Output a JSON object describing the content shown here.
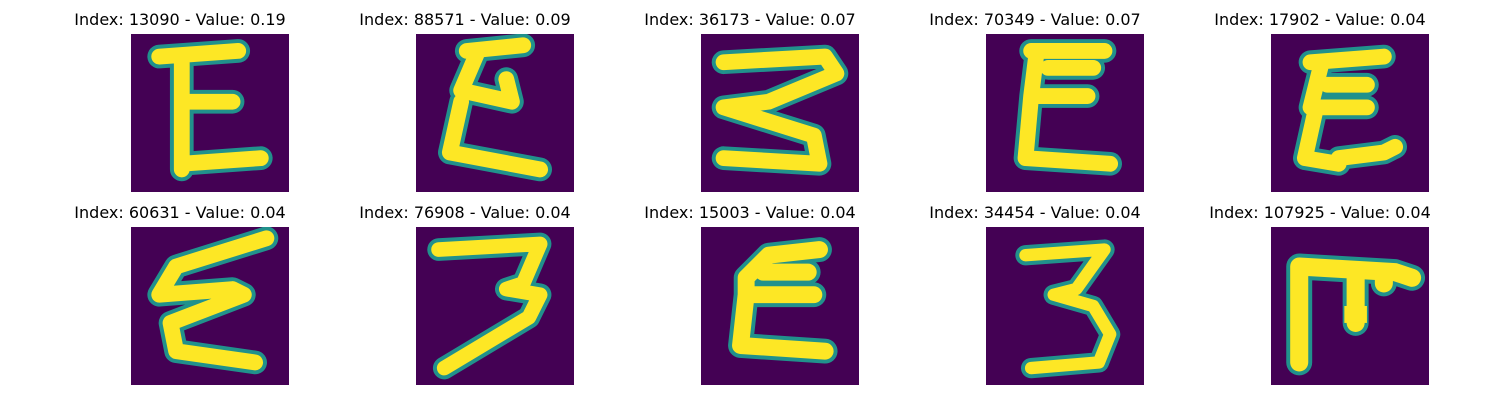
{
  "colors": {
    "background": "#440154",
    "foreground": "#fde725",
    "mid": "#21918c"
  },
  "panels": [
    {
      "title": "Index: 13090 - Value: 0.19",
      "index": 13090,
      "value": 0.19,
      "glyph": "E-shaped handwritten digit"
    },
    {
      "title": "Index: 88571 - Value: 0.09",
      "index": 88571,
      "value": 0.09,
      "glyph": "epsilon-shaped handwritten digit"
    },
    {
      "title": "Index: 36173 - Value: 0.07",
      "index": 36173,
      "value": 0.07,
      "glyph": "rotated 3 / sigma shape"
    },
    {
      "title": "Index: 70349 - Value: 0.07",
      "index": 70349,
      "value": 0.07,
      "glyph": "epsilon-shaped handwritten digit"
    },
    {
      "title": "Index: 17902 - Value: 0.04",
      "index": 17902,
      "value": 0.04,
      "glyph": "epsilon-shaped handwritten digit"
    },
    {
      "title": "Index: 60631 - Value: 0.04",
      "index": 60631,
      "value": 0.04,
      "glyph": "epsilon-shaped handwritten digit"
    },
    {
      "title": "Index: 76908 - Value: 0.04",
      "index": 76908,
      "value": 0.04,
      "glyph": "handwritten 3 / 7 shape"
    },
    {
      "title": "Index: 15003 - Value: 0.04",
      "index": 15003,
      "value": 0.04,
      "glyph": "epsilon-shaped handwritten digit"
    },
    {
      "title": "Index: 34454 - Value: 0.04",
      "index": 34454,
      "value": 0.04,
      "glyph": "handwritten 3"
    },
    {
      "title": "Index: 107925 - Value: 0.04",
      "index": 107925,
      "value": 0.04,
      "glyph": "rotated E / pi shape"
    }
  ]
}
